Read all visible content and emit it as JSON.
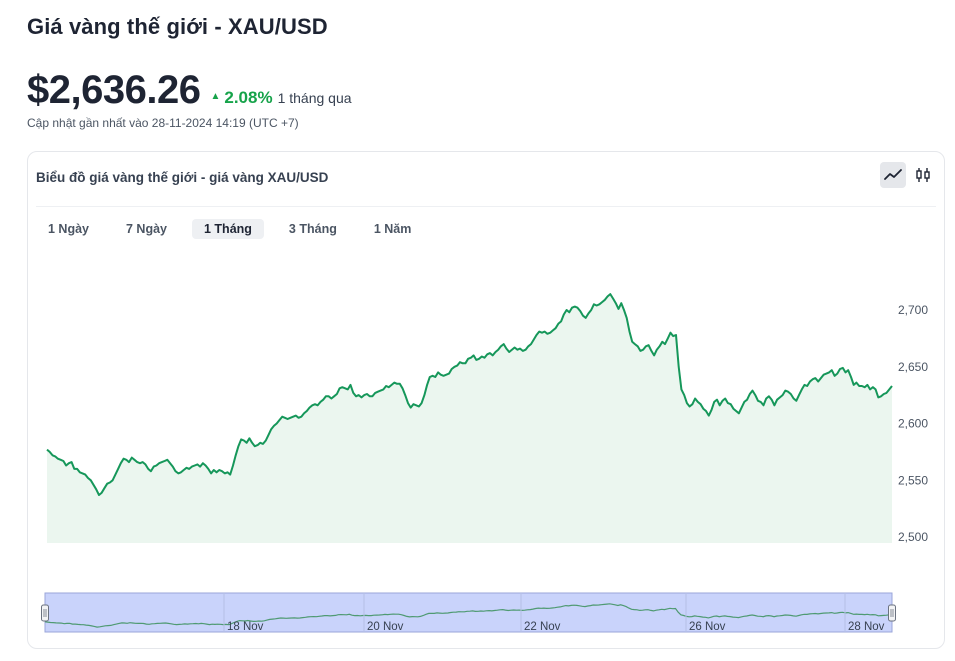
{
  "header": {
    "title": "Giá vàng thế giới - XAU/USD",
    "price": "$2,636.26",
    "change": "2.08%",
    "change_direction": "up",
    "period": "1 tháng qua",
    "updated": "Cập nhật gần nhất vào 28-11-2024 14:19 (UTC +7)"
  },
  "card": {
    "title": "Biểu đồ giá vàng thế giới - giá vàng XAU/USD",
    "chart_toggles": [
      {
        "icon": "line-chart-icon",
        "active": true
      },
      {
        "icon": "candlestick-icon",
        "active": false
      }
    ],
    "ranges": [
      {
        "label": "1 Ngày",
        "active": false
      },
      {
        "label": "7 Ngày",
        "active": false
      },
      {
        "label": "1 Tháng",
        "active": true
      },
      {
        "label": "3 Tháng",
        "active": false
      },
      {
        "label": "1 Năm",
        "active": false
      }
    ]
  },
  "colors": {
    "line": "#16975a",
    "area": "#ebf6ef",
    "up": "#16a34a",
    "navigator_fill": "#c9d3fb",
    "navigator_border": "#6b7280"
  },
  "chart_data": {
    "type": "area",
    "title": "",
    "xlabel": "",
    "ylabel": "",
    "ylim": [
      2500,
      2720
    ],
    "y_ticks": [
      2500,
      2550,
      2600,
      2650,
      2700
    ],
    "y_tick_labels": [
      "2,500",
      "2,550",
      "2,600",
      "2,650",
      "2,700"
    ],
    "axis_side": "right",
    "grid": false,
    "navigator": {
      "x_tick_labels": [
        "18 Nov",
        "20 Nov",
        "22 Nov",
        "26 Nov",
        "28 Nov"
      ],
      "x_tick_dates": [
        "2024-11-18",
        "2024-11-20",
        "2024-11-22",
        "2024-11-26",
        "2024-11-28"
      ]
    },
    "series": [
      {
        "values": [
          [
            2577,
            2575,
            2572,
            2571,
            2569,
            2568,
            2567,
            2563,
            2565,
            2566,
            2560,
            2560,
            2557,
            2556,
            2555,
            2552,
            2550,
            2546,
            2542,
            2537,
            2539,
            2543,
            2547,
            2548,
            2550,
            2555,
            2560,
            2565,
            2569,
            2568,
            2566,
            2570,
            2568,
            2566,
            2565,
            2566,
            2564,
            2560,
            2558,
            2562,
            2563,
            2565,
            2566,
            2567,
            2568,
            2565,
            2562,
            2558,
            2556,
            2557,
            2559,
            2561,
            2560,
            2562,
            2563,
            2564,
            2562,
            2565,
            2563,
            2560,
            2556,
            2559,
            2557,
            2559,
            2558,
            2556,
            2557,
            2555
          ],
          [
            2563,
            2572,
            2580,
            2586,
            2585,
            2583,
            2587,
            2583,
            2580,
            2581,
            2583,
            2582,
            2585,
            2590,
            2595,
            2598,
            2600,
            2603,
            2606,
            2605,
            2604,
            2605,
            2606,
            2607,
            2605,
            2606,
            2609,
            2611,
            2614,
            2616,
            2617,
            2616,
            2619,
            2621,
            2624,
            2624,
            2622,
            2624,
            2626,
            2631,
            2632,
            2631,
            2630,
            2634,
            2627,
            2624,
            2625,
            2623,
            2625,
            2626,
            2624,
            2624,
            2627,
            2628,
            2629,
            2630,
            2633,
            2632,
            2634,
            2636,
            2635,
            2635,
            2631,
            2625,
            2618,
            2614,
            2617,
            2616,
            2615,
            2618
          ],
          [
            2625,
            2634,
            2641,
            2642,
            2641,
            2645,
            2643,
            2642,
            2643,
            2644,
            2648,
            2650,
            2651,
            2654,
            2653,
            2653,
            2657,
            2658,
            2660,
            2656,
            2657,
            2659,
            2658,
            2661,
            2662,
            2660,
            2663,
            2665,
            2668,
            2670,
            2666,
            2663,
            2665,
            2667,
            2665,
            2666,
            2664,
            2665,
            2668,
            2670,
            2674,
            2678,
            2681,
            2680,
            2681,
            2679,
            2680,
            2682,
            2684,
            2688,
            2690,
            2696,
            2700,
            2698,
            2702,
            2703,
            2702,
            2699,
            2695,
            2693,
            2697,
            2700,
            2705,
            2704,
            2705,
            2707,
            2709,
            2712,
            2714,
            2710,
            2706,
            2701,
            2706,
            2700,
            2693,
            2681,
            2672,
            2670,
            2668,
            2664,
            2665,
            2668
          ],
          [
            2669,
            2664,
            2660,
            2665,
            2668,
            2672,
            2670,
            2675,
            2680,
            2677,
            2678,
            2650,
            2630,
            2625,
            2618,
            2615,
            2617,
            2622,
            2619,
            2617,
            2613,
            2611,
            2607,
            2612,
            2619,
            2621,
            2616,
            2620,
            2622,
            2618,
            2617,
            2613,
            2611,
            2609,
            2614,
            2619,
            2621,
            2626,
            2629,
            2625,
            2620,
            2619,
            2616,
            2622,
            2624,
            2621,
            2616,
            2621,
            2623,
            2625,
            2629,
            2628,
            2626,
            2622,
            2620,
            2625,
            2630,
            2634,
            2633,
            2637,
            2639,
            2640,
            2637,
            2640,
            2643,
            2644,
            2645,
            2647,
            2642,
            2644,
            2648,
            2649,
            2645,
            2647,
            2641,
            2634,
            2636,
            2633,
            2633,
            2632,
            2634,
            2630,
            2632,
            2630,
            2623,
            2624,
            2626,
            2627,
            2630,
            2633
          ]
        ]
      }
    ]
  }
}
